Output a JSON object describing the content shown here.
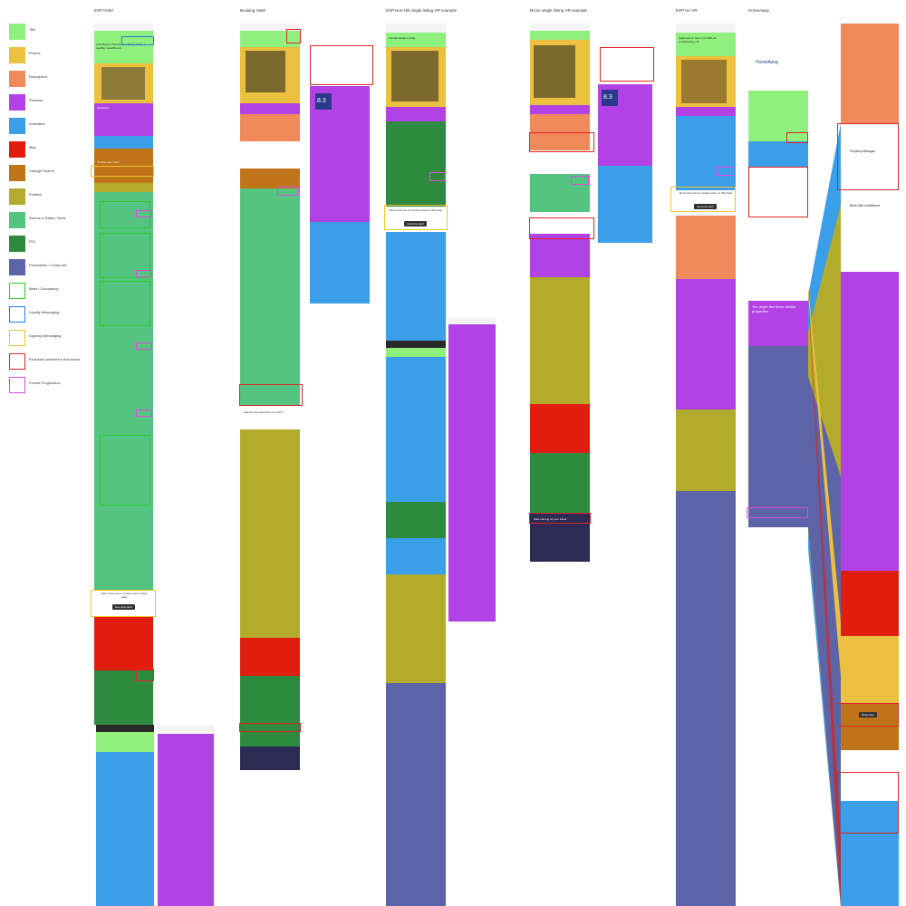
{
  "legend": [
    {
      "label": "Title",
      "color": "#90f07e",
      "style": "fill"
    },
    {
      "label": "Photos",
      "color": "#ecc13f",
      "style": "fill"
    },
    {
      "label": "Description",
      "color": "#f08a5b",
      "style": "fill"
    },
    {
      "label": "Reviews",
      "color": "#b342e6",
      "style": "fill"
    },
    {
      "label": "Amenities",
      "color": "#3a9ee9",
      "style": "fill"
    },
    {
      "label": "Map",
      "color": "#e11d10",
      "style": "fill"
    },
    {
      "label": "Change Search",
      "color": "#c07419",
      "style": "fill"
    },
    {
      "label": "Policies",
      "color": "#b3ab2c",
      "style": "fill"
    },
    {
      "label": "Rooms & Rates / Book",
      "color": "#55c480",
      "style": "fill"
    },
    {
      "label": "POI",
      "color": "#2d8a3e",
      "style": "fill"
    },
    {
      "label": "Promotions / Cross-sell",
      "color": "#5c63a6",
      "style": "fill"
    },
    {
      "label": "Beds / Occupancy",
      "color": "#2ec92e",
      "style": "outline"
    },
    {
      "label": "Loyalty Messaging",
      "color": "#1e7ce8",
      "style": "outline"
    },
    {
      "label": "Urgency Messaging",
      "color": "#f2c12e",
      "style": "outline"
    },
    {
      "label": "Exclusive content for that brand",
      "color": "#e02424",
      "style": "outline"
    },
    {
      "label": "Funnel Progression",
      "color": "#e04be0",
      "style": "outline"
    }
  ],
  "columns": [
    {
      "title": "EXP Hotel"
    },
    {
      "title": "Booking Hotel"
    },
    {
      "title": "EXP Non-Hilt single listing VR example"
    },
    {
      "title": "Bcom single listing VR example"
    },
    {
      "title": "EXP HA VR"
    },
    {
      "title": "HomeAway"
    }
  ],
  "labels": {
    "exp_hotel_name": "Lake Buena Vista Resort Village & Spa a staySky Hotel/Resort",
    "exp_hotel_reviews": "Excellent!",
    "exp_hotel_rooms": "Choose your room",
    "exp_hotel_cta": "Don't miss out on a lower price on this hotel",
    "exp_hotel_cta_btn": "Get price alert",
    "booking_score": "8.3",
    "booking_accom": "Choose your Accommodation",
    "booking_cta": "Like the ski resort but not so far?",
    "expnh_name": "Florida Vacation Villas",
    "expnh_cta": "Don't miss out on a lower price on this hotel",
    "expnh_cta_btn": "Get price alert",
    "bcom_score": "8.3",
    "bcom_cta": "Start earning on your travel",
    "exp_ha_name": "Apartment in New York With Air Conditioning, Lift",
    "exp_ha_cta": "Don't miss out on a lower price on this hotel",
    "exp_ha_cta_btn": "Get price alert",
    "ha_brand": "HomeAway",
    "ha_similar": "You might like these similar properties",
    "ha_manager": "Property Manager",
    "ha_book": "Book with confidence",
    "ha_book_btn": "Book Now"
  }
}
